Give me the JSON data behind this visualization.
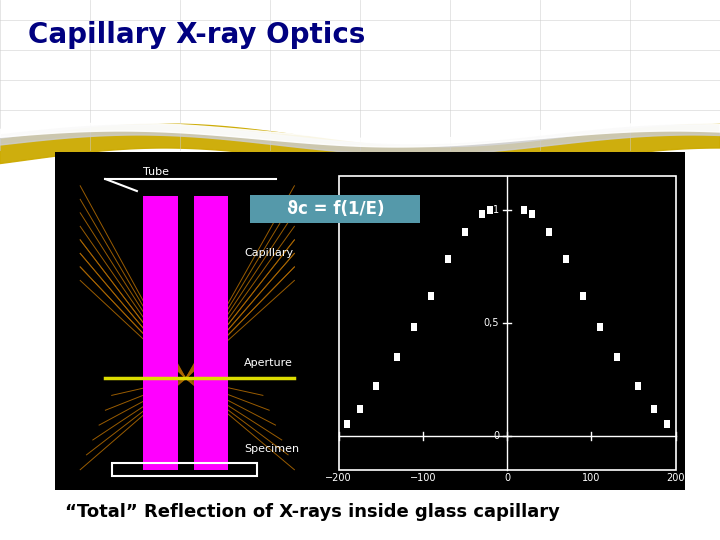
{
  "title": "Capillary X-ray Optics",
  "title_color": "#000080",
  "title_fontsize": 20,
  "subtitle": "“Total” Reflection of X-rays inside glass capillary",
  "subtitle_fontsize": 13,
  "bg_color": "#ffffff",
  "panel_bg": "#000000",
  "wave_gold_color": "#ccaa00",
  "wave_grey_color": "#bbbbbb",
  "wave_white_color": "#ffffff",
  "theta_label": "ϑc = f(1/E)",
  "theta_bg": "#5599aa",
  "capillary_color": "#ff00ff",
  "aperture_color": "#dddd00",
  "beam_color": "#aa6600",
  "tube_label": "Tube",
  "capillary_label": "Capillary",
  "aperture_label": "Aperture",
  "specimen_label": "Specimen",
  "label_color": "#ffffff",
  "label_fontsize": 8,
  "xaxis_ticks": [
    -200,
    -100,
    0,
    100,
    200
  ],
  "yaxis_labels": [
    "0",
    "0,5",
    "1"
  ],
  "yaxis_values": [
    0.0,
    0.5,
    1.0
  ]
}
